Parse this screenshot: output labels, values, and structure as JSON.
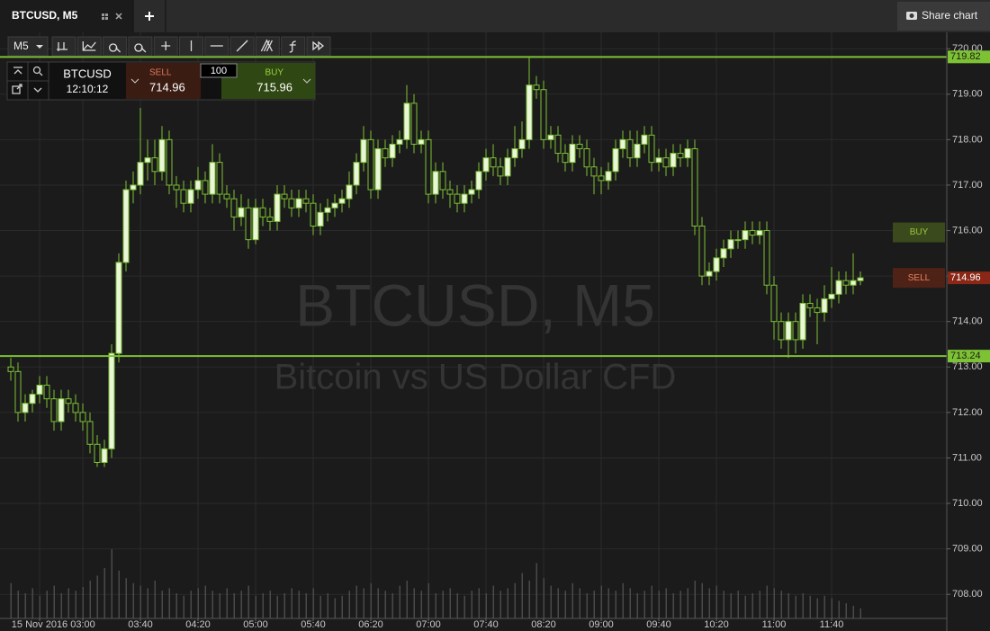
{
  "header": {
    "tab_title": "BTCUSD, M5",
    "share_button": "Share chart"
  },
  "toolbar": {
    "timeframe": "M5"
  },
  "trade_panel": {
    "symbol": "BTCUSD",
    "time": "12:10:12",
    "sell_label": "SELL",
    "sell_price": 714.96,
    "quantity": 100,
    "buy_label": "BUY",
    "buy_price": 715.96
  },
  "chart_data": {
    "type": "candlestick",
    "watermark_title": "BTCUSD, M5",
    "watermark_subtitle": "Bitcoin vs US Dollar CFD",
    "up_color": "#eaf6d8",
    "down_color": "#1a1a1a",
    "wick_color": "#7dc234",
    "volume_color": "#4a4a4a",
    "line_color": "#7dc234",
    "grid": true,
    "open": [
      713.0,
      712.9,
      712.0,
      712.2,
      712.4,
      712.6,
      712.3,
      711.8,
      712.3,
      712.2,
      712.0,
      711.8,
      711.3,
      710.9,
      711.2,
      713.3,
      715.3,
      716.9,
      717.0,
      717.5,
      717.6,
      717.3,
      718.0,
      717.0,
      716.9,
      716.6,
      716.9,
      717.1,
      716.8,
      717.5,
      716.8,
      716.7,
      716.3,
      716.5,
      715.8,
      716.5,
      716.3,
      716.2,
      716.8,
      716.7,
      716.5,
      716.7,
      716.6,
      716.1,
      716.4,
      716.5,
      716.6,
      716.7,
      717.0,
      717.5,
      718.0,
      716.9,
      717.8,
      717.6,
      717.9,
      718.0,
      718.8,
      717.9,
      718.0,
      716.8,
      717.3,
      716.9,
      716.8,
      716.6,
      716.8,
      716.9,
      717.3,
      717.6,
      717.4,
      717.2,
      717.6,
      717.8,
      718.0,
      719.2,
      719.1,
      718.0,
      718.1,
      717.7,
      717.5,
      717.9,
      717.8,
      717.4,
      717.2,
      717.1,
      717.3,
      717.8,
      718.0,
      717.6,
      717.9,
      718.1,
      717.5,
      717.6,
      717.4,
      717.7,
      717.6,
      717.8,
      716.1,
      715.0,
      715.1,
      715.4,
      715.6,
      715.8,
      715.8,
      716.0,
      715.9,
      716.0,
      714.8,
      714.0,
      713.6,
      714.0,
      713.6,
      714.4,
      714.3,
      714.2,
      714.5,
      714.6,
      714.9,
      714.8,
      714.9
    ],
    "high": [
      713.2,
      713.1,
      712.4,
      712.5,
      712.8,
      712.8,
      712.5,
      712.5,
      712.5,
      712.4,
      712.2,
      712.0,
      711.5,
      711.4,
      713.5,
      715.5,
      717.1,
      717.3,
      718.7,
      718.0,
      718.0,
      718.3,
      718.2,
      717.2,
      717.1,
      717.1,
      717.4,
      717.3,
      717.9,
      717.7,
      717.0,
      716.9,
      716.8,
      716.7,
      716.7,
      716.7,
      716.5,
      717.0,
      717.0,
      716.9,
      716.9,
      716.9,
      716.8,
      716.6,
      716.7,
      716.8,
      716.9,
      717.3,
      717.7,
      718.3,
      718.2,
      718.0,
      718.0,
      718.1,
      718.2,
      719.2,
      719.0,
      718.2,
      718.2,
      717.5,
      717.5,
      717.1,
      717.0,
      717.0,
      717.1,
      717.5,
      717.8,
      717.9,
      717.6,
      717.8,
      718.3,
      718.4,
      719.8,
      719.4,
      719.3,
      718.3,
      718.3,
      717.9,
      718.1,
      718.1,
      718.0,
      717.6,
      717.4,
      717.5,
      718.0,
      718.2,
      718.2,
      718.2,
      718.3,
      718.3,
      717.8,
      717.8,
      717.9,
      717.9,
      718.0,
      718.0,
      716.3,
      715.3,
      715.6,
      715.8,
      716.0,
      716.0,
      716.2,
      716.2,
      716.2,
      716.2,
      715.0,
      714.2,
      714.2,
      714.2,
      714.6,
      714.6,
      714.5,
      714.8,
      715.2,
      715.1,
      715.1,
      715.5,
      715.1
    ],
    "low": [
      712.7,
      711.8,
      711.8,
      712.0,
      712.2,
      712.1,
      711.6,
      711.6,
      712.0,
      711.8,
      711.6,
      711.1,
      710.8,
      710.8,
      711.0,
      713.1,
      715.1,
      716.6,
      716.8,
      717.1,
      717.0,
      717.1,
      716.8,
      716.5,
      716.4,
      716.4,
      716.7,
      716.6,
      716.6,
      716.6,
      716.5,
      716.0,
      716.1,
      715.6,
      715.7,
      716.1,
      716.0,
      716.0,
      716.5,
      716.3,
      716.3,
      716.4,
      715.9,
      715.9,
      716.2,
      716.3,
      716.4,
      716.5,
      716.8,
      717.3,
      716.7,
      716.7,
      717.4,
      717.4,
      717.7,
      717.8,
      717.7,
      717.7,
      716.6,
      716.6,
      716.7,
      716.5,
      716.4,
      716.4,
      716.6,
      716.7,
      717.1,
      717.2,
      717.0,
      717.0,
      717.4,
      717.6,
      717.8,
      718.9,
      717.8,
      717.8,
      717.5,
      717.3,
      717.3,
      717.6,
      717.2,
      716.8,
      716.8,
      716.9,
      717.1,
      717.6,
      717.4,
      717.4,
      717.7,
      717.3,
      717.3,
      717.2,
      717.2,
      717.4,
      717.4,
      715.9,
      714.8,
      714.8,
      714.9,
      715.2,
      715.4,
      715.6,
      715.6,
      715.7,
      715.7,
      714.6,
      713.6,
      713.4,
      713.2,
      713.3,
      713.4,
      714.1,
      713.5,
      714.0,
      714.3,
      714.4,
      714.6,
      714.6,
      714.8
    ],
    "close": [
      712.9,
      712.0,
      712.2,
      712.4,
      712.6,
      712.3,
      711.8,
      712.3,
      712.2,
      712.0,
      711.8,
      711.3,
      710.9,
      711.2,
      713.3,
      715.3,
      716.9,
      717.0,
      717.5,
      717.6,
      717.3,
      718.0,
      717.0,
      716.9,
      716.6,
      716.9,
      717.1,
      716.8,
      717.5,
      716.8,
      716.7,
      716.3,
      716.5,
      715.8,
      716.5,
      716.3,
      716.2,
      716.8,
      716.7,
      716.5,
      716.7,
      716.6,
      716.1,
      716.4,
      716.5,
      716.6,
      716.7,
      717.0,
      717.5,
      718.0,
      716.9,
      717.8,
      717.6,
      717.9,
      718.0,
      718.8,
      717.9,
      718.0,
      716.8,
      717.3,
      716.9,
      716.8,
      716.6,
      716.8,
      716.9,
      717.3,
      717.6,
      717.4,
      717.2,
      717.6,
      717.8,
      718.0,
      719.2,
      719.1,
      718.0,
      718.1,
      717.7,
      717.5,
      717.9,
      717.8,
      717.4,
      717.2,
      717.1,
      717.3,
      717.8,
      718.0,
      717.6,
      717.9,
      718.1,
      717.5,
      717.6,
      717.4,
      717.7,
      717.6,
      717.8,
      716.1,
      715.0,
      715.1,
      715.4,
      715.6,
      715.8,
      715.8,
      716.0,
      715.9,
      716.0,
      714.8,
      714.0,
      713.6,
      714.0,
      713.6,
      714.4,
      714.3,
      714.2,
      714.5,
      714.6,
      714.9,
      714.8,
      714.9,
      714.96
    ],
    "volume": [
      28,
      22,
      20,
      24,
      18,
      22,
      26,
      20,
      24,
      22,
      25,
      30,
      34,
      40,
      55,
      38,
      32,
      28,
      26,
      24,
      30,
      22,
      24,
      20,
      18,
      22,
      24,
      26,
      22,
      20,
      24,
      20,
      22,
      26,
      18,
      20,
      22,
      18,
      20,
      24,
      22,
      20,
      24,
      18,
      20,
      16,
      18,
      22,
      26,
      24,
      28,
      24,
      22,
      20,
      26,
      30,
      24,
      22,
      28,
      20,
      22,
      24,
      20,
      18,
      22,
      24,
      20,
      26,
      22,
      24,
      28,
      36,
      30,
      44,
      32,
      26,
      24,
      22,
      28,
      24,
      20,
      22,
      26,
      24,
      22,
      28,
      24,
      20,
      22,
      26,
      22,
      24,
      20,
      22,
      24,
      30,
      28,
      24,
      26,
      22,
      20,
      22,
      18,
      20,
      22,
      26,
      24,
      22,
      20,
      18,
      20,
      18,
      16,
      18,
      16,
      14,
      12,
      10,
      8
    ],
    "volume_lim": [
      0,
      100
    ],
    "ylim": [
      707.47,
      720.36
    ],
    "yticks": [
      {
        "value": 708,
        "label": "708.00"
      },
      {
        "value": 709,
        "label": "709.00"
      },
      {
        "value": 710,
        "label": "710.00"
      },
      {
        "value": 711,
        "label": "711.00"
      },
      {
        "value": 712,
        "label": "712.00"
      },
      {
        "value": 713,
        "label": "713.00"
      },
      {
        "value": 714,
        "label": "714.00"
      },
      {
        "value": 715,
        "label": "715.00"
      },
      {
        "value": 716,
        "label": "716.00"
      },
      {
        "value": 717,
        "label": "717.00"
      },
      {
        "value": 718,
        "label": "718.00"
      },
      {
        "value": 719,
        "label": "719.00"
      },
      {
        "value": 720,
        "label": "720.00"
      }
    ],
    "xticks": [
      {
        "value": 4,
        "label": "15 Nov 2016"
      },
      {
        "value": 10,
        "label": "03:00"
      },
      {
        "value": 18,
        "label": "03:40"
      },
      {
        "value": 26,
        "label": "04:20"
      },
      {
        "value": 34,
        "label": "05:00"
      },
      {
        "value": 42,
        "label": "05:40"
      },
      {
        "value": 50,
        "label": "06:20"
      },
      {
        "value": 58,
        "label": "07:00"
      },
      {
        "value": 66,
        "label": "07:40"
      },
      {
        "value": 74,
        "label": "08:20"
      },
      {
        "value": 82,
        "label": "09:00"
      },
      {
        "value": 90,
        "label": "09:40"
      },
      {
        "value": 98,
        "label": "10:20"
      },
      {
        "value": 106,
        "label": "11:00"
      },
      {
        "value": 114,
        "label": "11:40"
      }
    ],
    "hlines": [
      719.82,
      713.24
    ],
    "last_price": 714.96,
    "price_markers": [
      {
        "label": "BUY",
        "value": 715.96,
        "color": "#3b4a1c",
        "text_color": "#9bc83a"
      },
      {
        "label": "SELL",
        "value": 714.96,
        "color": "#4e2216",
        "text_color": "#e8825f"
      }
    ]
  }
}
